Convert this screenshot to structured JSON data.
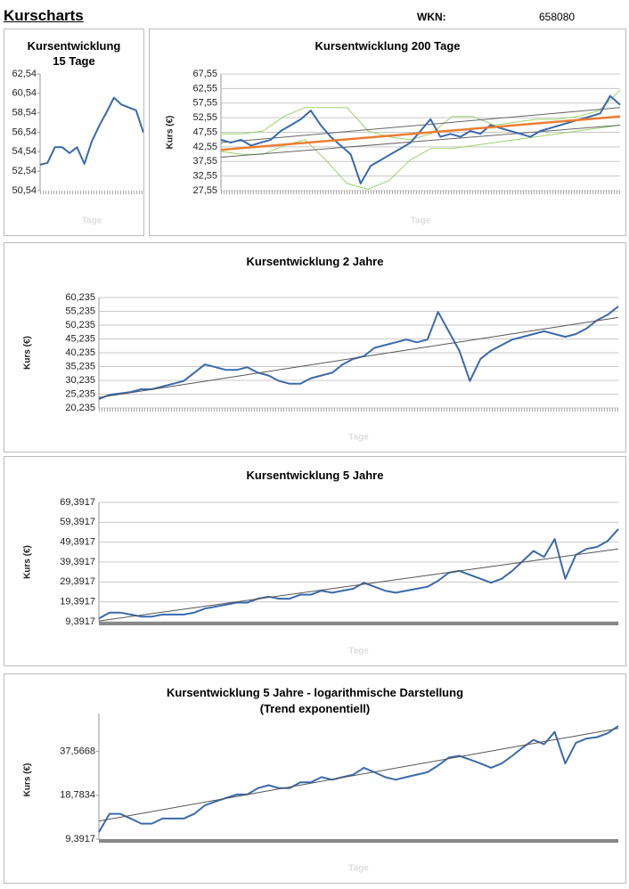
{
  "header": {
    "title": "Kurscharts",
    "wkn_label": "WKN:",
    "wkn": "658080"
  },
  "chart_data": [
    {
      "type": "line",
      "title": "Kursentwicklung 15 Tage",
      "x_label": "Tage",
      "grid": false,
      "log": false,
      "ylim": [
        50.54,
        62.54
      ],
      "yticks": [
        {
          "value": 50.54,
          "label": "50,54"
        },
        {
          "value": 52.54,
          "label": "52,54"
        },
        {
          "value": 54.54,
          "label": "54,54"
        },
        {
          "value": 56.54,
          "label": "56,54"
        },
        {
          "value": 58.54,
          "label": "58,54"
        },
        {
          "value": 60.54,
          "label": "60,54"
        },
        {
          "value": 62.54,
          "label": "62,54"
        }
      ],
      "series": [
        {
          "name": "Kurs",
          "color": "#3a6aad",
          "values": [
            53.2,
            53.4,
            55.0,
            55.0,
            54.4,
            55.0,
            53.3,
            55.6,
            57.2,
            58.6,
            60.1,
            59.4,
            59.1,
            58.8,
            56.5
          ]
        }
      ]
    },
    {
      "type": "line",
      "title": "Kursentwicklung 200 Tage",
      "x_label": "Tage",
      "y_label": "Kurs (€)",
      "grid": true,
      "log": false,
      "ylim": [
        27.55,
        67.55
      ],
      "yticks": [
        {
          "value": 27.55,
          "label": "27,55"
        },
        {
          "value": 32.55,
          "label": "32,55"
        },
        {
          "value": 37.55,
          "label": "37,55"
        },
        {
          "value": 42.55,
          "label": "42,55"
        },
        {
          "value": 47.55,
          "label": "47,55"
        },
        {
          "value": 52.55,
          "label": "52,55"
        },
        {
          "value": 57.55,
          "label": "57,55"
        },
        {
          "value": 62.55,
          "label": "62,55"
        },
        {
          "value": 67.55,
          "label": "67,55"
        }
      ],
      "series": [
        {
          "name": "Bollinger oben",
          "color": "#9bd36b",
          "values": [
            47,
            47,
            48,
            53,
            56,
            56,
            56,
            48,
            46,
            45,
            47,
            53,
            53,
            50,
            51,
            52,
            52,
            53,
            55,
            62
          ]
        },
        {
          "name": "Bollinger unten",
          "color": "#9bd36b",
          "values": [
            41,
            40,
            40,
            43,
            45,
            38,
            30,
            28,
            31,
            38,
            42,
            42,
            43,
            44,
            45,
            46,
            47,
            48,
            49,
            50
          ]
        },
        {
          "name": "Kanal oben",
          "color": "#666666",
          "values": [
            44,
            56
          ]
        },
        {
          "name": "Kanal unten",
          "color": "#666666",
          "values": [
            39,
            50
          ]
        },
        {
          "name": "Kurs",
          "color": "#3a6aad",
          "values": [
            45,
            44,
            45,
            43,
            44,
            45,
            48,
            50,
            52,
            55,
            50,
            46,
            43,
            40,
            30,
            36,
            38,
            40,
            42,
            44,
            48,
            52,
            46,
            47,
            46,
            48,
            47,
            50,
            49,
            48,
            47,
            46,
            48,
            49,
            50,
            51,
            52,
            53,
            54,
            60,
            57
          ]
        },
        {
          "name": "Trend",
          "color": "#ed7d31",
          "values": [
            41.5,
            53
          ]
        }
      ]
    },
    {
      "type": "line",
      "title": "Kursentwicklung 2 Jahre",
      "x_label": "Tage",
      "y_label": "Kurs (€)",
      "grid": true,
      "log": false,
      "ylim": [
        20.235,
        60.235
      ],
      "yticks": [
        {
          "value": 20.235,
          "label": "20,235"
        },
        {
          "value": 25.235,
          "label": "25,235"
        },
        {
          "value": 30.235,
          "label": "30,235"
        },
        {
          "value": 35.235,
          "label": "35,235"
        },
        {
          "value": 40.235,
          "label": "40,235"
        },
        {
          "value": 45.235,
          "label": "45,235"
        },
        {
          "value": 50.235,
          "label": "50,235"
        },
        {
          "value": 55.235,
          "label": "55,235"
        },
        {
          "value": 60.235,
          "label": "60,235"
        }
      ],
      "series": [
        {
          "name": "Kurs",
          "color": "#3a6aad",
          "values": [
            23.5,
            25,
            25.5,
            26,
            27,
            27,
            28,
            29,
            30,
            33,
            36,
            35,
            34,
            34,
            35,
            33,
            32,
            30,
            29,
            29,
            31,
            32,
            33,
            36,
            38,
            39,
            42,
            43,
            44,
            45,
            44,
            45,
            55,
            48,
            41,
            30,
            38,
            41,
            43,
            45,
            46,
            47,
            48,
            47,
            46,
            47,
            49,
            52,
            54,
            57
          ]
        },
        {
          "name": "Trend",
          "color": "#555555",
          "values": [
            24,
            53
          ]
        }
      ]
    },
    {
      "type": "line",
      "title": "Kursentwicklung 5 Jahre",
      "x_label": "Tage",
      "y_label": "Kurs (€)",
      "grid": true,
      "log": false,
      "ylim": [
        9.3917,
        69.3917
      ],
      "yticks": [
        {
          "value": 9.3917,
          "label": "9,3917"
        },
        {
          "value": 19.3917,
          "label": "19,3917"
        },
        {
          "value": 29.3917,
          "label": "29,3917"
        },
        {
          "value": 39.3917,
          "label": "39,3917"
        },
        {
          "value": 49.3917,
          "label": "49,3917"
        },
        {
          "value": 59.3917,
          "label": "59,3917"
        },
        {
          "value": 69.3917,
          "label": "69,3917"
        }
      ],
      "series": [
        {
          "name": "Kurs",
          "color": "#3a6aad",
          "values": [
            11,
            14,
            14,
            13,
            12,
            12,
            13,
            13,
            13,
            14,
            16,
            17,
            18,
            19,
            19,
            21,
            22,
            21,
            21,
            23,
            23,
            25,
            24,
            25,
            26,
            29,
            27,
            25,
            24,
            25,
            26,
            27,
            30,
            34,
            35,
            33,
            31,
            29,
            31,
            35,
            40,
            45,
            42,
            51,
            31,
            43,
            46,
            47,
            50,
            56
          ]
        },
        {
          "name": "Trend",
          "color": "#555555",
          "values": [
            9.8,
            46
          ]
        }
      ]
    },
    {
      "type": "line",
      "title": "Kursentwicklung 5 Jahre - logarithmische Darstellung",
      "subtitle": "(Trend exponentiell)",
      "x_label": "Tage",
      "y_label": "Kurs (€)",
      "grid": false,
      "log": true,
      "ylim": [
        9.3917,
        61
      ],
      "yticks": [
        {
          "value": 9.3917,
          "label": "9,3917"
        },
        {
          "value": 18.7834,
          "label": "18,7834"
        },
        {
          "value": 37.5668,
          "label": "37,5668"
        }
      ],
      "series": [
        {
          "name": "Kurs",
          "color": "#3a6aad",
          "values": [
            10.5,
            14,
            14,
            13,
            12,
            12,
            13,
            13,
            13,
            14,
            16,
            17,
            18,
            19,
            19,
            21,
            22,
            21,
            21,
            23,
            23,
            25,
            24,
            25,
            26,
            29,
            27,
            25,
            24,
            25,
            26,
            27,
            30,
            34,
            35,
            33,
            31,
            29,
            31,
            35,
            40,
            45,
            42,
            51,
            31,
            43,
            46,
            47,
            50,
            56
          ]
        },
        {
          "name": "Trend",
          "color": "#555555",
          "values": [
            12.5,
            54
          ]
        }
      ]
    }
  ]
}
